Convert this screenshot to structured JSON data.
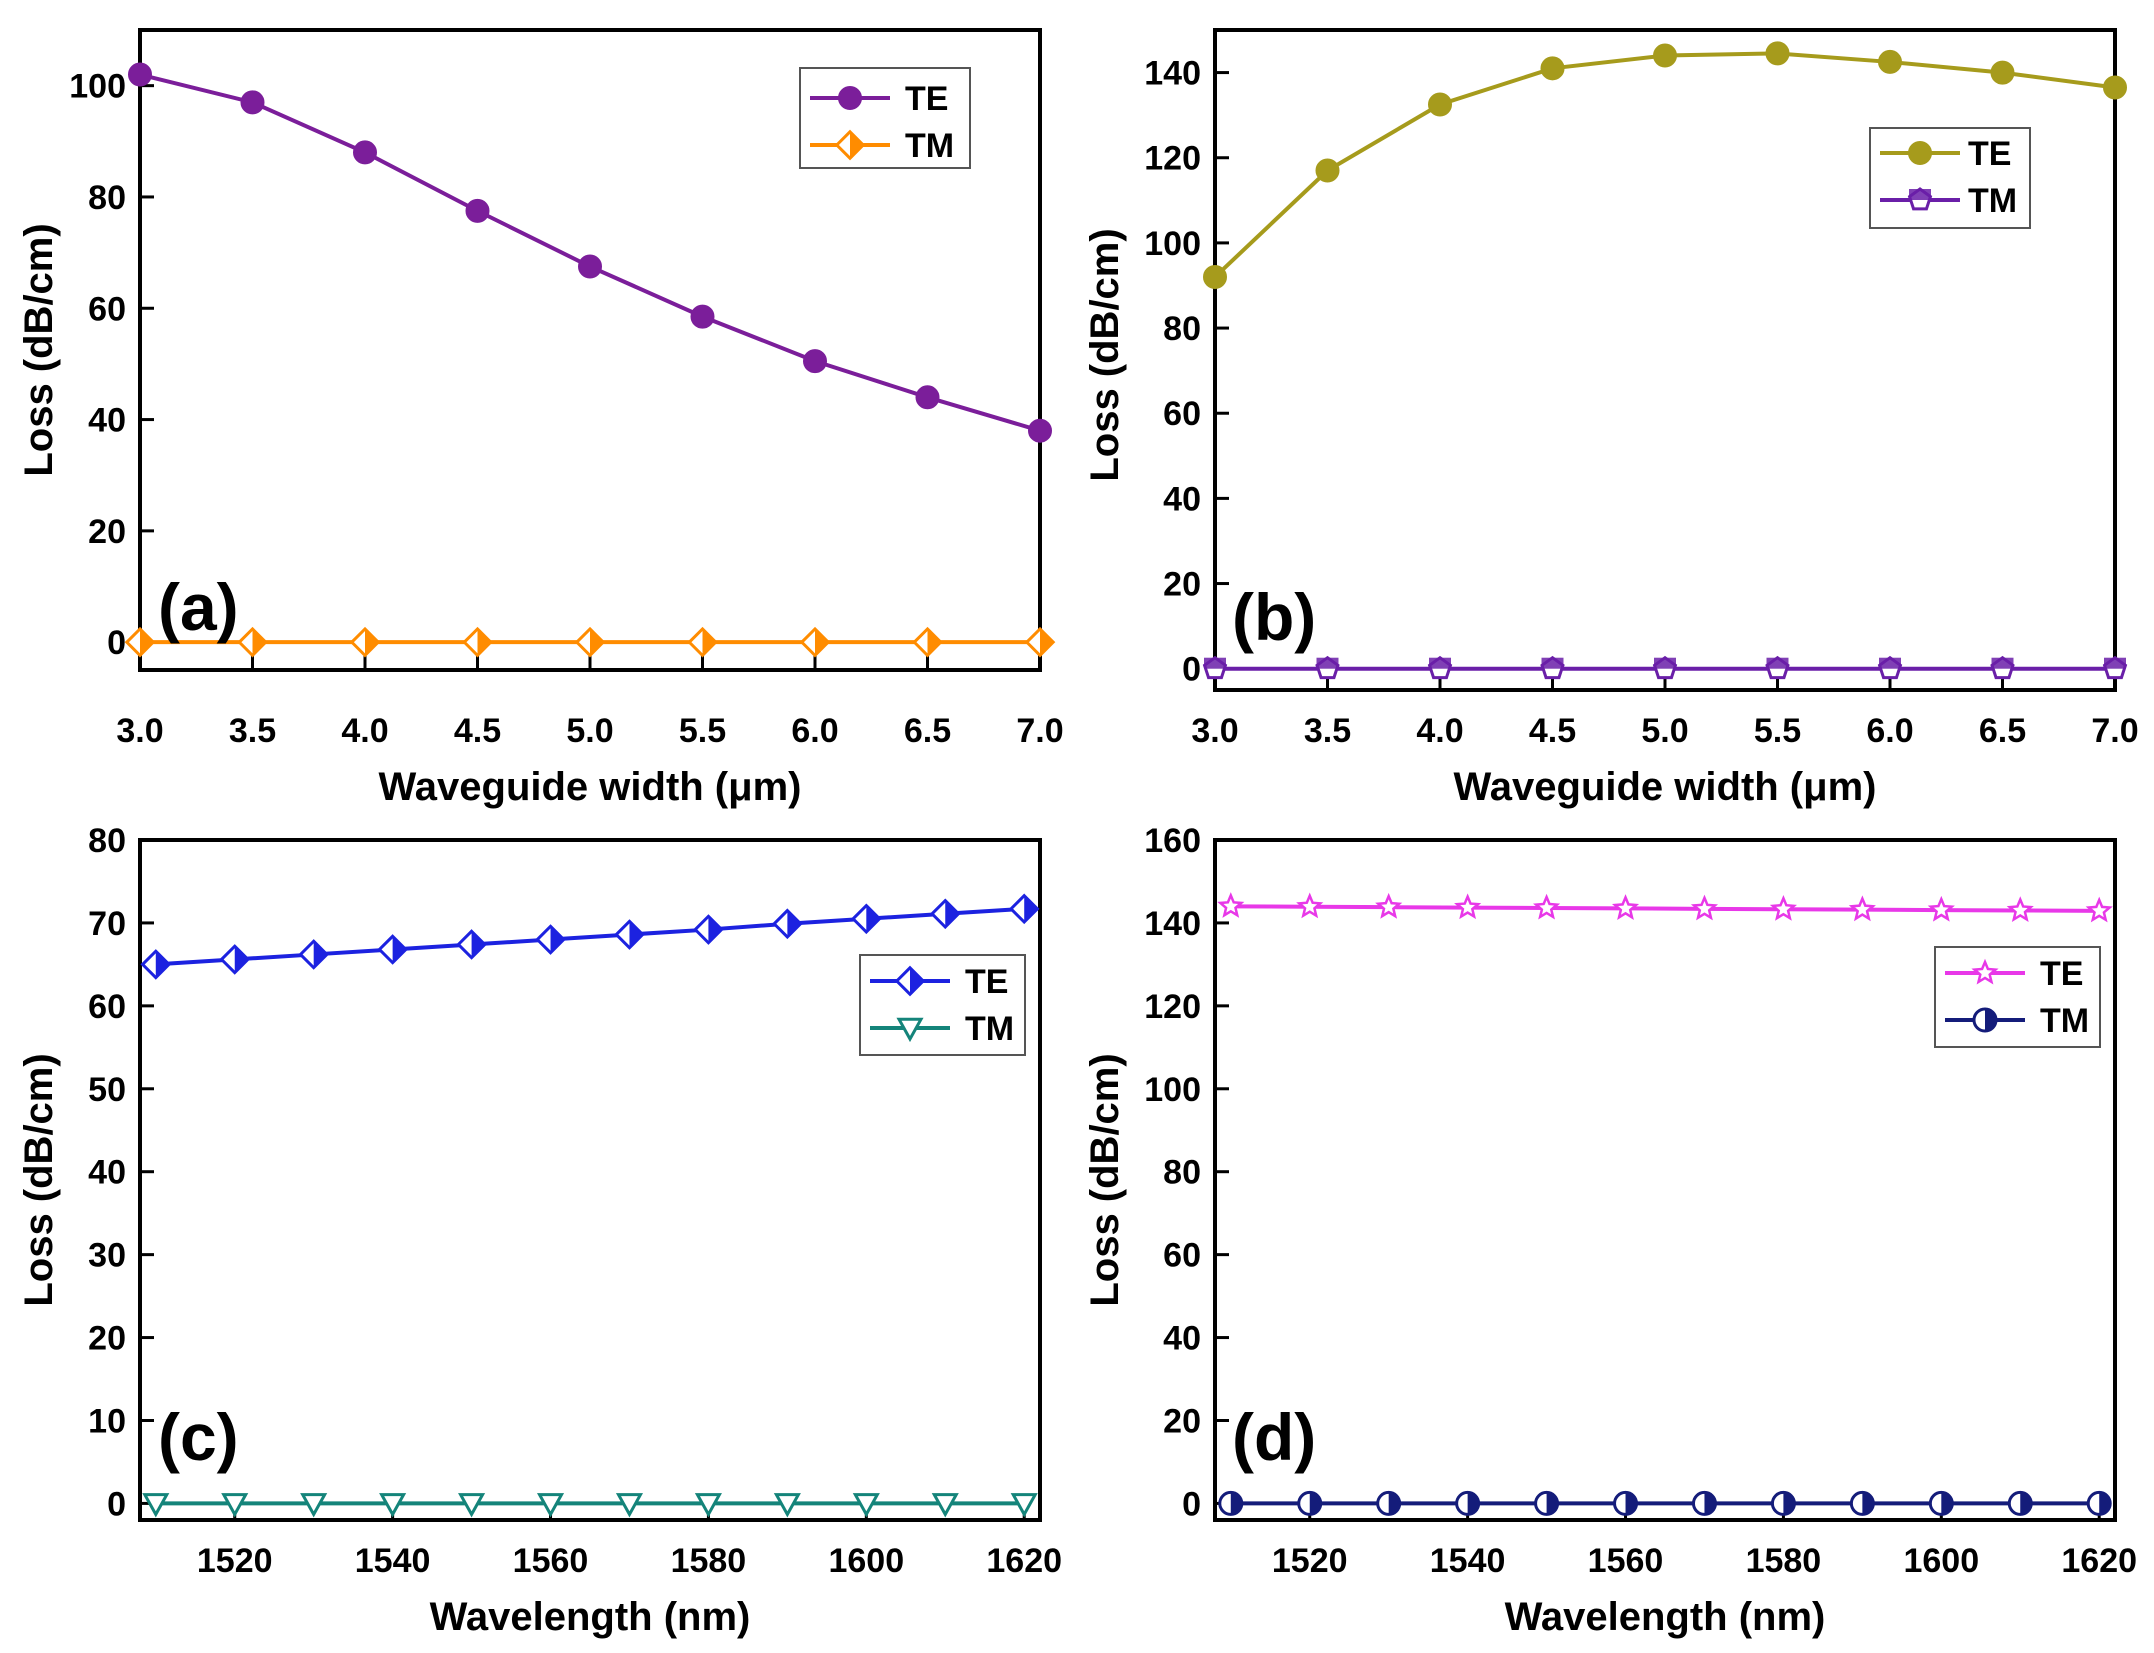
{
  "chart_data": [
    {
      "id": "a",
      "panel_label": "(a)",
      "type": "line",
      "xlabel": "Waveguide width (μm)",
      "ylabel": "Loss (dB/cm)",
      "xlim": [
        3.0,
        7.0
      ],
      "ylim": [
        -5,
        110
      ],
      "xticks": [
        3.0,
        3.5,
        4.0,
        4.5,
        5.0,
        5.5,
        6.0,
        6.5,
        7.0
      ],
      "xtick_labels": [
        "3.0",
        "3.5",
        "4.0",
        "4.5",
        "5.0",
        "5.5",
        "6.0",
        "6.5",
        "7.0"
      ],
      "yticks": [
        0,
        20,
        40,
        60,
        80,
        100
      ],
      "ytick_labels": [
        "0",
        "20",
        "40",
        "60",
        "80",
        "100"
      ],
      "x": [
        3.0,
        3.5,
        4.0,
        4.5,
        5.0,
        5.5,
        6.0,
        6.5,
        7.0
      ],
      "legend_position": "top-right",
      "series": [
        {
          "name": "TE",
          "color": "#7b1e9a",
          "marker": "circle",
          "values": [
            102,
            97,
            88,
            77.5,
            67.5,
            58.5,
            50.5,
            44,
            38
          ]
        },
        {
          "name": "TM",
          "color": "#ff8c00",
          "marker": "diamond-half",
          "values": [
            0,
            0,
            0,
            0,
            0,
            0,
            0,
            0,
            0
          ]
        }
      ]
    },
    {
      "id": "b",
      "panel_label": "(b)",
      "type": "line",
      "xlabel": "Waveguide width (μm)",
      "ylabel": "Loss (dB/cm)",
      "xlim": [
        3.0,
        7.0
      ],
      "ylim": [
        -5,
        150
      ],
      "xticks": [
        3.0,
        3.5,
        4.0,
        4.5,
        5.0,
        5.5,
        6.0,
        6.5,
        7.0
      ],
      "xtick_labels": [
        "3.0",
        "3.5",
        "4.0",
        "4.5",
        "5.0",
        "5.5",
        "6.0",
        "6.5",
        "7.0"
      ],
      "yticks": [
        0,
        20,
        40,
        60,
        80,
        100,
        120,
        140
      ],
      "ytick_labels": [
        "0",
        "20",
        "40",
        "60",
        "80",
        "100",
        "120",
        "140"
      ],
      "x": [
        3.0,
        3.5,
        4.0,
        4.5,
        5.0,
        5.5,
        6.0,
        6.5,
        7.0
      ],
      "legend_position": "top-right",
      "series": [
        {
          "name": "TE",
          "color": "#a69b1c",
          "marker": "circle",
          "values": [
            92,
            117,
            132.5,
            141,
            144,
            144.5,
            142.5,
            140,
            136.5
          ]
        },
        {
          "name": "TM",
          "color": "#6a1fa8",
          "marker": "pentagon-half",
          "values": [
            0,
            0,
            0,
            0,
            0,
            0,
            0,
            0,
            0
          ]
        }
      ]
    },
    {
      "id": "c",
      "panel_label": "(c)",
      "type": "line",
      "xlabel": "Wavelength (nm)",
      "ylabel": "Loss (dB/cm)",
      "xlim": [
        1508,
        1622
      ],
      "ylim": [
        -2,
        80
      ],
      "xticks": [
        1520,
        1540,
        1560,
        1580,
        1600,
        1620
      ],
      "xtick_labels": [
        "1520",
        "1540",
        "1560",
        "1580",
        "1600",
        "1620"
      ],
      "yticks": [
        0,
        10,
        20,
        30,
        40,
        50,
        60,
        70,
        80
      ],
      "ytick_labels": [
        "0",
        "10",
        "20",
        "30",
        "40",
        "50",
        "60",
        "70",
        "80"
      ],
      "x": [
        1510,
        1520,
        1530,
        1540,
        1550,
        1560,
        1570,
        1580,
        1590,
        1600,
        1610,
        1620
      ],
      "legend_position": "right",
      "series": [
        {
          "name": "TE",
          "color": "#1c22e0",
          "marker": "diamond-half",
          "values": [
            65,
            65.6,
            66.2,
            66.8,
            67.4,
            68,
            68.6,
            69.2,
            69.9,
            70.5,
            71.1,
            71.7
          ]
        },
        {
          "name": "TM",
          "color": "#14847a",
          "marker": "triangle-down",
          "values": [
            0,
            0,
            0,
            0,
            0,
            0,
            0,
            0,
            0,
            0,
            0,
            0
          ]
        }
      ]
    },
    {
      "id": "d",
      "panel_label": "(d)",
      "type": "line",
      "xlabel": "Wavelength (nm)",
      "ylabel": "Loss (dB/cm)",
      "xlim": [
        1508,
        1622
      ],
      "ylim": [
        -4,
        160
      ],
      "xticks": [
        1520,
        1540,
        1560,
        1580,
        1600,
        1620
      ],
      "xtick_labels": [
        "1520",
        "1540",
        "1560",
        "1580",
        "1600",
        "1620"
      ],
      "yticks": [
        0,
        20,
        40,
        60,
        80,
        100,
        120,
        140,
        160
      ],
      "ytick_labels": [
        "0",
        "20",
        "40",
        "60",
        "80",
        "100",
        "120",
        "140",
        "160"
      ],
      "x": [
        1510,
        1520,
        1530,
        1540,
        1550,
        1560,
        1570,
        1580,
        1590,
        1600,
        1610,
        1620
      ],
      "legend_position": "right",
      "series": [
        {
          "name": "TE",
          "color": "#e838e8",
          "marker": "star",
          "values": [
            144,
            143.9,
            143.8,
            143.7,
            143.6,
            143.5,
            143.4,
            143.3,
            143.2,
            143.1,
            143,
            142.9
          ]
        },
        {
          "name": "TM",
          "color": "#141c7a",
          "marker": "circle-half",
          "values": [
            0,
            0,
            0,
            0,
            0,
            0,
            0,
            0,
            0,
            0,
            0,
            0
          ]
        }
      ]
    }
  ]
}
